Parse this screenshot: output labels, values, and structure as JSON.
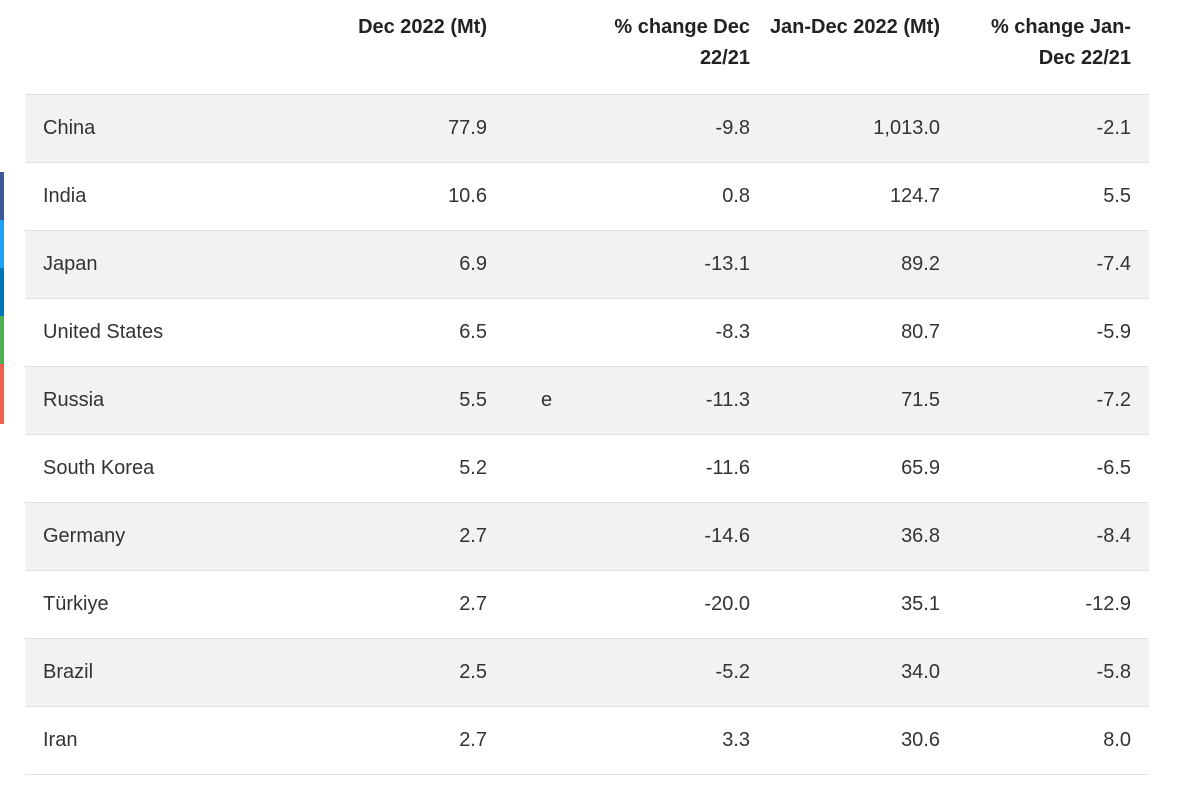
{
  "share_bar": {
    "segments": [
      {
        "icon": "facebook-share-icon",
        "color": "#3b5998"
      },
      {
        "icon": "twitter-share-icon",
        "color": "#1da1f2"
      },
      {
        "icon": "linkedin-share-icon",
        "color": "#0077b5"
      },
      {
        "icon": "whatsapp-share-icon",
        "color": "#4caf50"
      },
      {
        "icon": "email-share-icon",
        "color": "#f0624d"
      }
    ]
  },
  "table": {
    "headers": {
      "country": "",
      "dec_2022": "Dec 2022 (Mt)",
      "flag": "",
      "pct_dec": "% change Dec 22/21",
      "jan_dec_2022": "Jan-Dec 2022 (Mt)",
      "pct_jan_dec": "% change Jan-Dec 22/21"
    },
    "rows": [
      {
        "country": "China",
        "dec_2022": "77.9",
        "flag": "",
        "pct_dec": "-9.8",
        "jan_dec_2022": "1,013.0",
        "pct_jan_dec": "-2.1"
      },
      {
        "country": "India",
        "dec_2022": "10.6",
        "flag": "",
        "pct_dec": "0.8",
        "jan_dec_2022": "124.7",
        "pct_jan_dec": "5.5"
      },
      {
        "country": "Japan",
        "dec_2022": "6.9",
        "flag": "",
        "pct_dec": "-13.1",
        "jan_dec_2022": "89.2",
        "pct_jan_dec": "-7.4"
      },
      {
        "country": "United States",
        "dec_2022": "6.5",
        "flag": "",
        "pct_dec": "-8.3",
        "jan_dec_2022": "80.7",
        "pct_jan_dec": "-5.9"
      },
      {
        "country": "Russia",
        "dec_2022": "5.5",
        "flag": "e",
        "pct_dec": "-11.3",
        "jan_dec_2022": "71.5",
        "pct_jan_dec": "-7.2"
      },
      {
        "country": "South Korea",
        "dec_2022": "5.2",
        "flag": "",
        "pct_dec": "-11.6",
        "jan_dec_2022": "65.9",
        "pct_jan_dec": "-6.5"
      },
      {
        "country": "Germany",
        "dec_2022": "2.7",
        "flag": "",
        "pct_dec": "-14.6",
        "jan_dec_2022": "36.8",
        "pct_jan_dec": "-8.4"
      },
      {
        "country": "Türkiye",
        "dec_2022": "2.7",
        "flag": "",
        "pct_dec": "-20.0",
        "jan_dec_2022": "35.1",
        "pct_jan_dec": "-12.9"
      },
      {
        "country": "Brazil",
        "dec_2022": "2.5",
        "flag": "",
        "pct_dec": "-5.2",
        "jan_dec_2022": "34.0",
        "pct_jan_dec": "-5.8"
      },
      {
        "country": "Iran",
        "dec_2022": "2.7",
        "flag": "",
        "pct_dec": "3.3",
        "jan_dec_2022": "30.6",
        "pct_jan_dec": "8.0"
      }
    ]
  }
}
